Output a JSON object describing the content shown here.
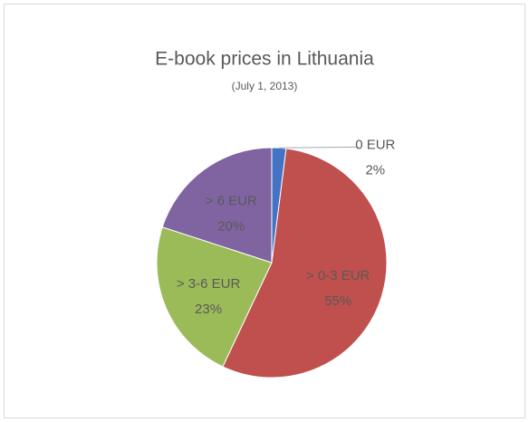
{
  "chart_data": {
    "type": "pie",
    "title": "E-book prices in Lithuania",
    "subtitle": "(July 1, 2013)",
    "categories": [
      "0 EUR",
      "> 0-3 EUR",
      "> 3-6 EUR",
      "> 6 EUR"
    ],
    "values": [
      2,
      55,
      23,
      20
    ],
    "value_labels": [
      "2%",
      "55%",
      "23%",
      "20%"
    ],
    "colors": [
      "#4472c4",
      "#c0504d",
      "#9bbb59",
      "#8064a2"
    ]
  }
}
